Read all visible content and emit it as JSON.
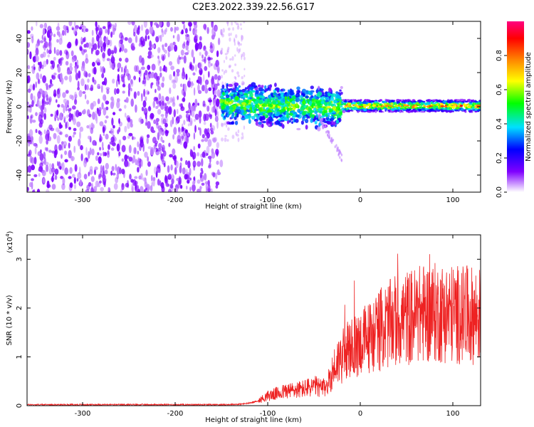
{
  "figure": {
    "title": "C2E3.2022.339.22.56.G17"
  },
  "chart_data": [
    {
      "type": "heatmap",
      "xlabel": "Height of straight line (km)",
      "ylabel": "Frequency (Hz)",
      "xlim": [
        -360,
        130
      ],
      "ylim": [
        -50,
        50
      ],
      "xticks": [
        -300,
        -200,
        -100,
        0,
        100
      ],
      "yticks": [
        -40,
        -20,
        0,
        20,
        40
      ],
      "colorbar": {
        "label": "Normalized spectral amplitude",
        "range": [
          0.0,
          1.0
        ],
        "ticks": [
          0.0,
          0.2,
          0.4,
          0.6,
          0.8
        ],
        "tick_labels": [
          "0.0",
          "0.2",
          "0.4",
          "0.6",
          "0.8"
        ],
        "colormap": [
          "#ffffff",
          "#8000ff",
          "#0000ff",
          "#00e0ff",
          "#00ff00",
          "#ffff00",
          "#ff8000",
          "#ff0000",
          "#ff0080"
        ]
      },
      "regions": [
        {
          "description": "diffuse noise",
          "x": [
            -360,
            -150
          ],
          "freq": [
            -50,
            50
          ],
          "amplitude": 0.05
        },
        {
          "description": "scattered signal",
          "x": [
            -150,
            -20
          ],
          "freq": [
            -12,
            15
          ],
          "amplitude": 0.4
        },
        {
          "description": "steady carrier",
          "x": [
            -20,
            130
          ],
          "freq": [
            -3,
            4
          ],
          "amplitude": 0.85
        }
      ]
    },
    {
      "type": "line",
      "xlabel": "Height of straight line (km)",
      "ylabel": "SNR (10 * v/v)",
      "yscale_label": "(x10",
      "yscale_exp": "4",
      "xlim": [
        -360,
        130
      ],
      "ylim": [
        0,
        3.5
      ],
      "xticks": [
        -300,
        -200,
        -100,
        0,
        100
      ],
      "yticks": [
        0,
        1,
        2,
        3
      ],
      "color": "#ee2222",
      "series": [
        {
          "x": [
            -360,
            -300,
            -250,
            -200,
            -150,
            -130,
            -120,
            -110,
            -100,
            -90,
            -80,
            -70,
            -60,
            -50,
            -45,
            -40,
            -35,
            -30,
            -25,
            -20,
            -15,
            -10,
            -5,
            0,
            5,
            10,
            20,
            30,
            40,
            50,
            60,
            70,
            80,
            90,
            100,
            110,
            120,
            130
          ],
          "values": [
            0.02,
            0.02,
            0.02,
            0.02,
            0.02,
            0.03,
            0.05,
            0.1,
            0.2,
            0.25,
            0.3,
            0.32,
            0.35,
            0.4,
            0.38,
            0.35,
            0.45,
            0.7,
            0.9,
            1.0,
            1.1,
            1.15,
            1.2,
            1.3,
            1.35,
            1.4,
            1.55,
            1.65,
            1.75,
            1.8,
            1.85,
            1.9,
            1.9,
            1.9,
            1.88,
            1.86,
            1.85,
            1.85
          ]
        }
      ]
    }
  ]
}
